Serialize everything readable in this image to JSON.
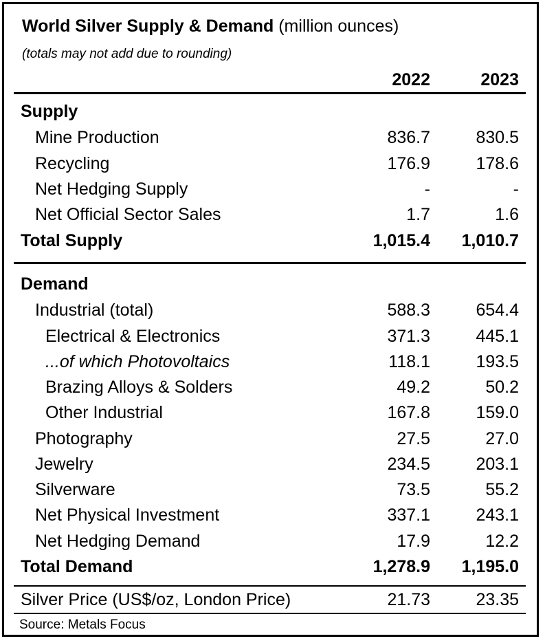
{
  "header": {
    "title_bold": "World Silver Supply & Demand",
    "title_unit": "(million ounces)",
    "note": "(totals may not add due to rounding)",
    "columns": [
      "2022",
      "2023"
    ]
  },
  "chart_data": {
    "type": "table",
    "title": "World Silver Supply & Demand (million ounces)",
    "subtitle": "(totals may not add due to rounding)",
    "columns": [
      "2022",
      "2023"
    ],
    "rows": [
      {
        "label": "Supply",
        "style": "section",
        "values": [
          "",
          ""
        ]
      },
      {
        "label": "Mine Production",
        "indent": 1,
        "values": [
          "836.7",
          "830.5"
        ]
      },
      {
        "label": "Recycling",
        "indent": 1,
        "values": [
          "176.9",
          "178.6"
        ]
      },
      {
        "label": "Net Hedging Supply",
        "indent": 1,
        "values": [
          "-",
          "-"
        ]
      },
      {
        "label": "Net Official Sector Sales",
        "indent": 1,
        "values": [
          "1.7",
          "1.6"
        ]
      },
      {
        "label": "Total Supply",
        "style": "total",
        "values": [
          "1,015.4",
          "1,010.7"
        ]
      },
      {
        "label": "Demand",
        "style": "section",
        "values": [
          "",
          ""
        ]
      },
      {
        "label": "Industrial (total)",
        "indent": 1,
        "values": [
          "588.3",
          "654.4"
        ]
      },
      {
        "label": "Electrical & Electronics",
        "indent": 2,
        "values": [
          "371.3",
          "445.1"
        ]
      },
      {
        "label": "...of which Photovoltaics",
        "indent": 2,
        "style": "italic",
        "values": [
          "118.1",
          "193.5"
        ]
      },
      {
        "label": "Brazing Alloys & Solders",
        "indent": 2,
        "values": [
          "49.2",
          "50.2"
        ]
      },
      {
        "label": "Other Industrial",
        "indent": 2,
        "values": [
          "167.8",
          "159.0"
        ]
      },
      {
        "label": "Photography",
        "indent": 1,
        "values": [
          "27.5",
          "27.0"
        ]
      },
      {
        "label": "Jewelry",
        "indent": 1,
        "values": [
          "234.5",
          "203.1"
        ]
      },
      {
        "label": "Silverware",
        "indent": 1,
        "values": [
          "73.5",
          "55.2"
        ]
      },
      {
        "label": "Net Physical Investment",
        "indent": 1,
        "values": [
          "337.1",
          "243.1"
        ]
      },
      {
        "label": "Net Hedging Demand",
        "indent": 1,
        "values": [
          "17.9",
          "12.2"
        ]
      },
      {
        "label": "Total Demand",
        "style": "total",
        "values": [
          "1,278.9",
          "1,195.0"
        ]
      },
      {
        "label": "Silver Price (US$/oz, London Price)",
        "values": [
          "21.73",
          "23.35"
        ]
      }
    ]
  },
  "footer": {
    "source": "Source: Metals Focus"
  }
}
